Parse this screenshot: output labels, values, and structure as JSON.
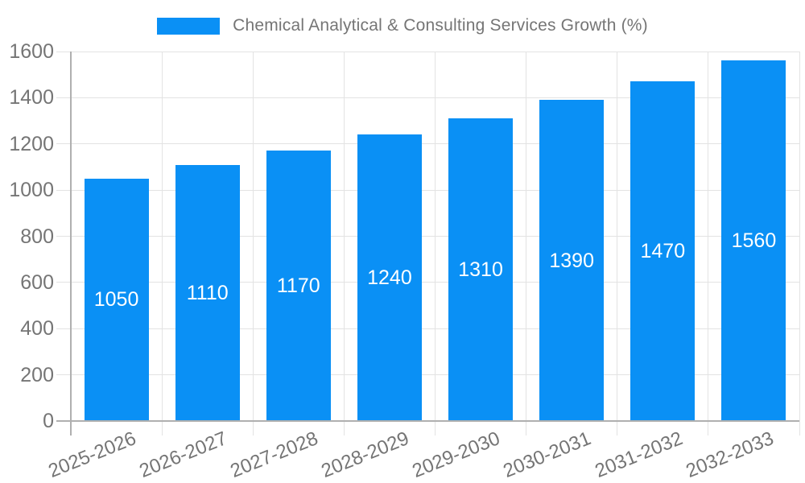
{
  "chart_data": {
    "type": "bar",
    "title": "Chemical Analytical & Consulting Services Growth (%)",
    "categories": [
      "2025-2026",
      "2026-2027",
      "2027-2028",
      "2028-2029",
      "2029-2030",
      "2030-2031",
      "2031-2032",
      "2032-2033"
    ],
    "values": [
      1050,
      1110,
      1170,
      1240,
      1310,
      1390,
      1470,
      1560
    ],
    "bar_value_labels": [
      "1050",
      "1110",
      "1170",
      "1240",
      "1310",
      "1390",
      "1470",
      "1560"
    ],
    "y_tick_labels": [
      "0",
      "200",
      "400",
      "600",
      "800",
      "1000",
      "1200",
      "1400",
      "1600"
    ],
    "xlabel": "",
    "ylabel": "",
    "ylim": [
      0,
      1600
    ],
    "ytick_step": 200,
    "grid": true,
    "legend_position": "top-center",
    "colors": {
      "bar": "#0a90f5",
      "bar_label": "#ffffff",
      "grid": "#e3e3e3",
      "axis": "#b0b0b0",
      "tick_label": "#757575",
      "title": "#757575",
      "background": "#ffffff"
    }
  }
}
